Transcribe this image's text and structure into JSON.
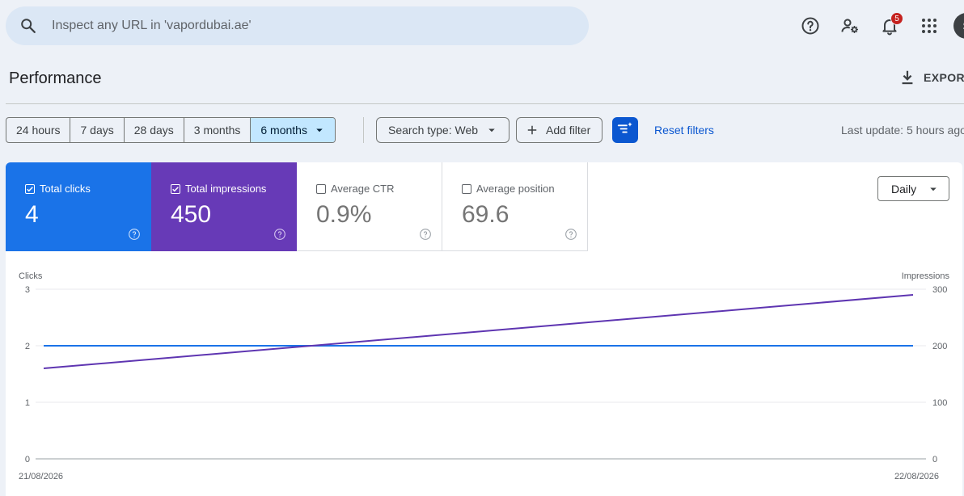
{
  "search": {
    "placeholder": "Inspect any URL in 'vapordubai.ae'",
    "icon": "search-icon"
  },
  "header_icons": [
    {
      "name": "help-icon"
    },
    {
      "name": "manage-users-icon"
    },
    {
      "name": "notifications-icon",
      "badge": "5"
    },
    {
      "name": "apps-icon"
    }
  ],
  "avatar": {
    "initial": "S"
  },
  "page": {
    "title": "Performance",
    "export_label": "EXPORT"
  },
  "filters": {
    "ranges": [
      "24 hours",
      "7 days",
      "28 days",
      "3 months",
      "6 months"
    ],
    "active_range": "6 months",
    "search_type": "Search type: Web",
    "add_filter": "Add filter",
    "reset": "Reset filters",
    "last_update": "Last update: 5 hours ago"
  },
  "metrics": [
    {
      "label": "Total clicks",
      "value": "4",
      "checked": true,
      "color": "#1a73e8"
    },
    {
      "label": "Total impressions",
      "value": "450",
      "checked": true,
      "color": "#673ab7"
    },
    {
      "label": "Average CTR",
      "value": "0.9%",
      "checked": false
    },
    {
      "label": "Average position",
      "value": "69.6",
      "checked": false
    }
  ],
  "granularity": "Daily",
  "chart_data": {
    "type": "line",
    "x": [
      "21/08/2026",
      "22/08/2026"
    ],
    "y_left": {
      "label": "Clicks",
      "ticks": [
        0,
        1,
        2,
        3
      ],
      "lim": [
        0,
        3
      ]
    },
    "y_right": {
      "label": "Impressions",
      "ticks": [
        0,
        100,
        200,
        300
      ],
      "lim": [
        0,
        300
      ]
    },
    "series": [
      {
        "name": "Clicks",
        "axis": "left",
        "color": "#1a73e8",
        "values": [
          2,
          2
        ]
      },
      {
        "name": "Impressions",
        "axis": "right",
        "color": "#5e35b1",
        "values": [
          160,
          290
        ]
      }
    ],
    "grid": true
  }
}
